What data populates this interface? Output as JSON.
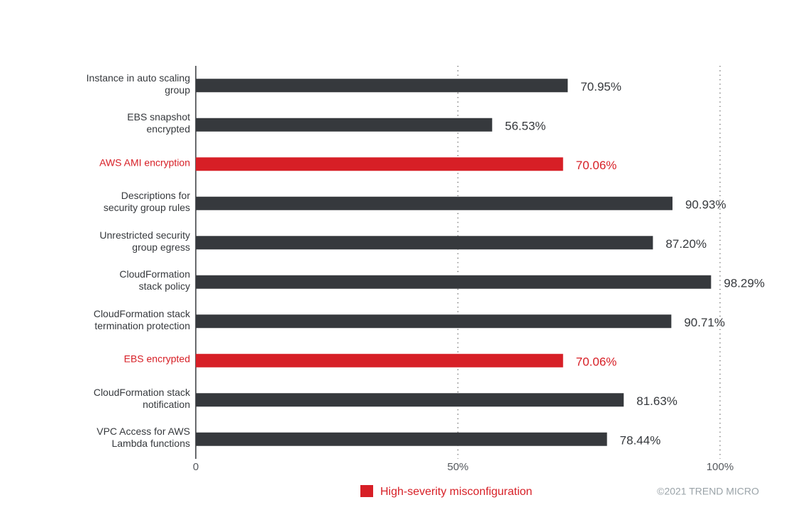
{
  "chart_data": {
    "type": "barh",
    "categories": [
      "Instance in auto scaling\ngroup",
      "EBS snapshot\nencrypted",
      "AWS AMI encryption",
      "Descriptions for\nsecurity group rules",
      "Unrestricted security\ngroup egress",
      "CloudFormation\nstack policy",
      "CloudFormation stack\ntermination protection",
      "EBS encrypted",
      "CloudFormation stack\nnotification",
      "VPC Access for AWS\nLambda functions"
    ],
    "values": [
      70.95,
      56.53,
      70.06,
      90.93,
      87.2,
      98.29,
      90.71,
      70.06,
      81.63,
      78.44
    ],
    "value_labels": [
      "70.95%",
      "56.53%",
      "70.06%",
      "90.93%",
      "87.20%",
      "98.29%",
      "90.71%",
      "70.06%",
      "81.63%",
      "78.44%"
    ],
    "colors": [
      "#36393d",
      "#36393d",
      "#d71f26",
      "#36393d",
      "#36393d",
      "#36393d",
      "#36393d",
      "#d71f26",
      "#36393d",
      "#36393d"
    ],
    "xlim": [
      0,
      100
    ],
    "xticks": [
      0,
      {
        "value": 50,
        "label": "50%"
      },
      {
        "value": 100,
        "label": "100%"
      }
    ],
    "grid": true,
    "legend": [
      {
        "name": "High-severity misconfiguration",
        "color": "#d71f26"
      }
    ],
    "credit": "©2021 TREND MICRO"
  }
}
